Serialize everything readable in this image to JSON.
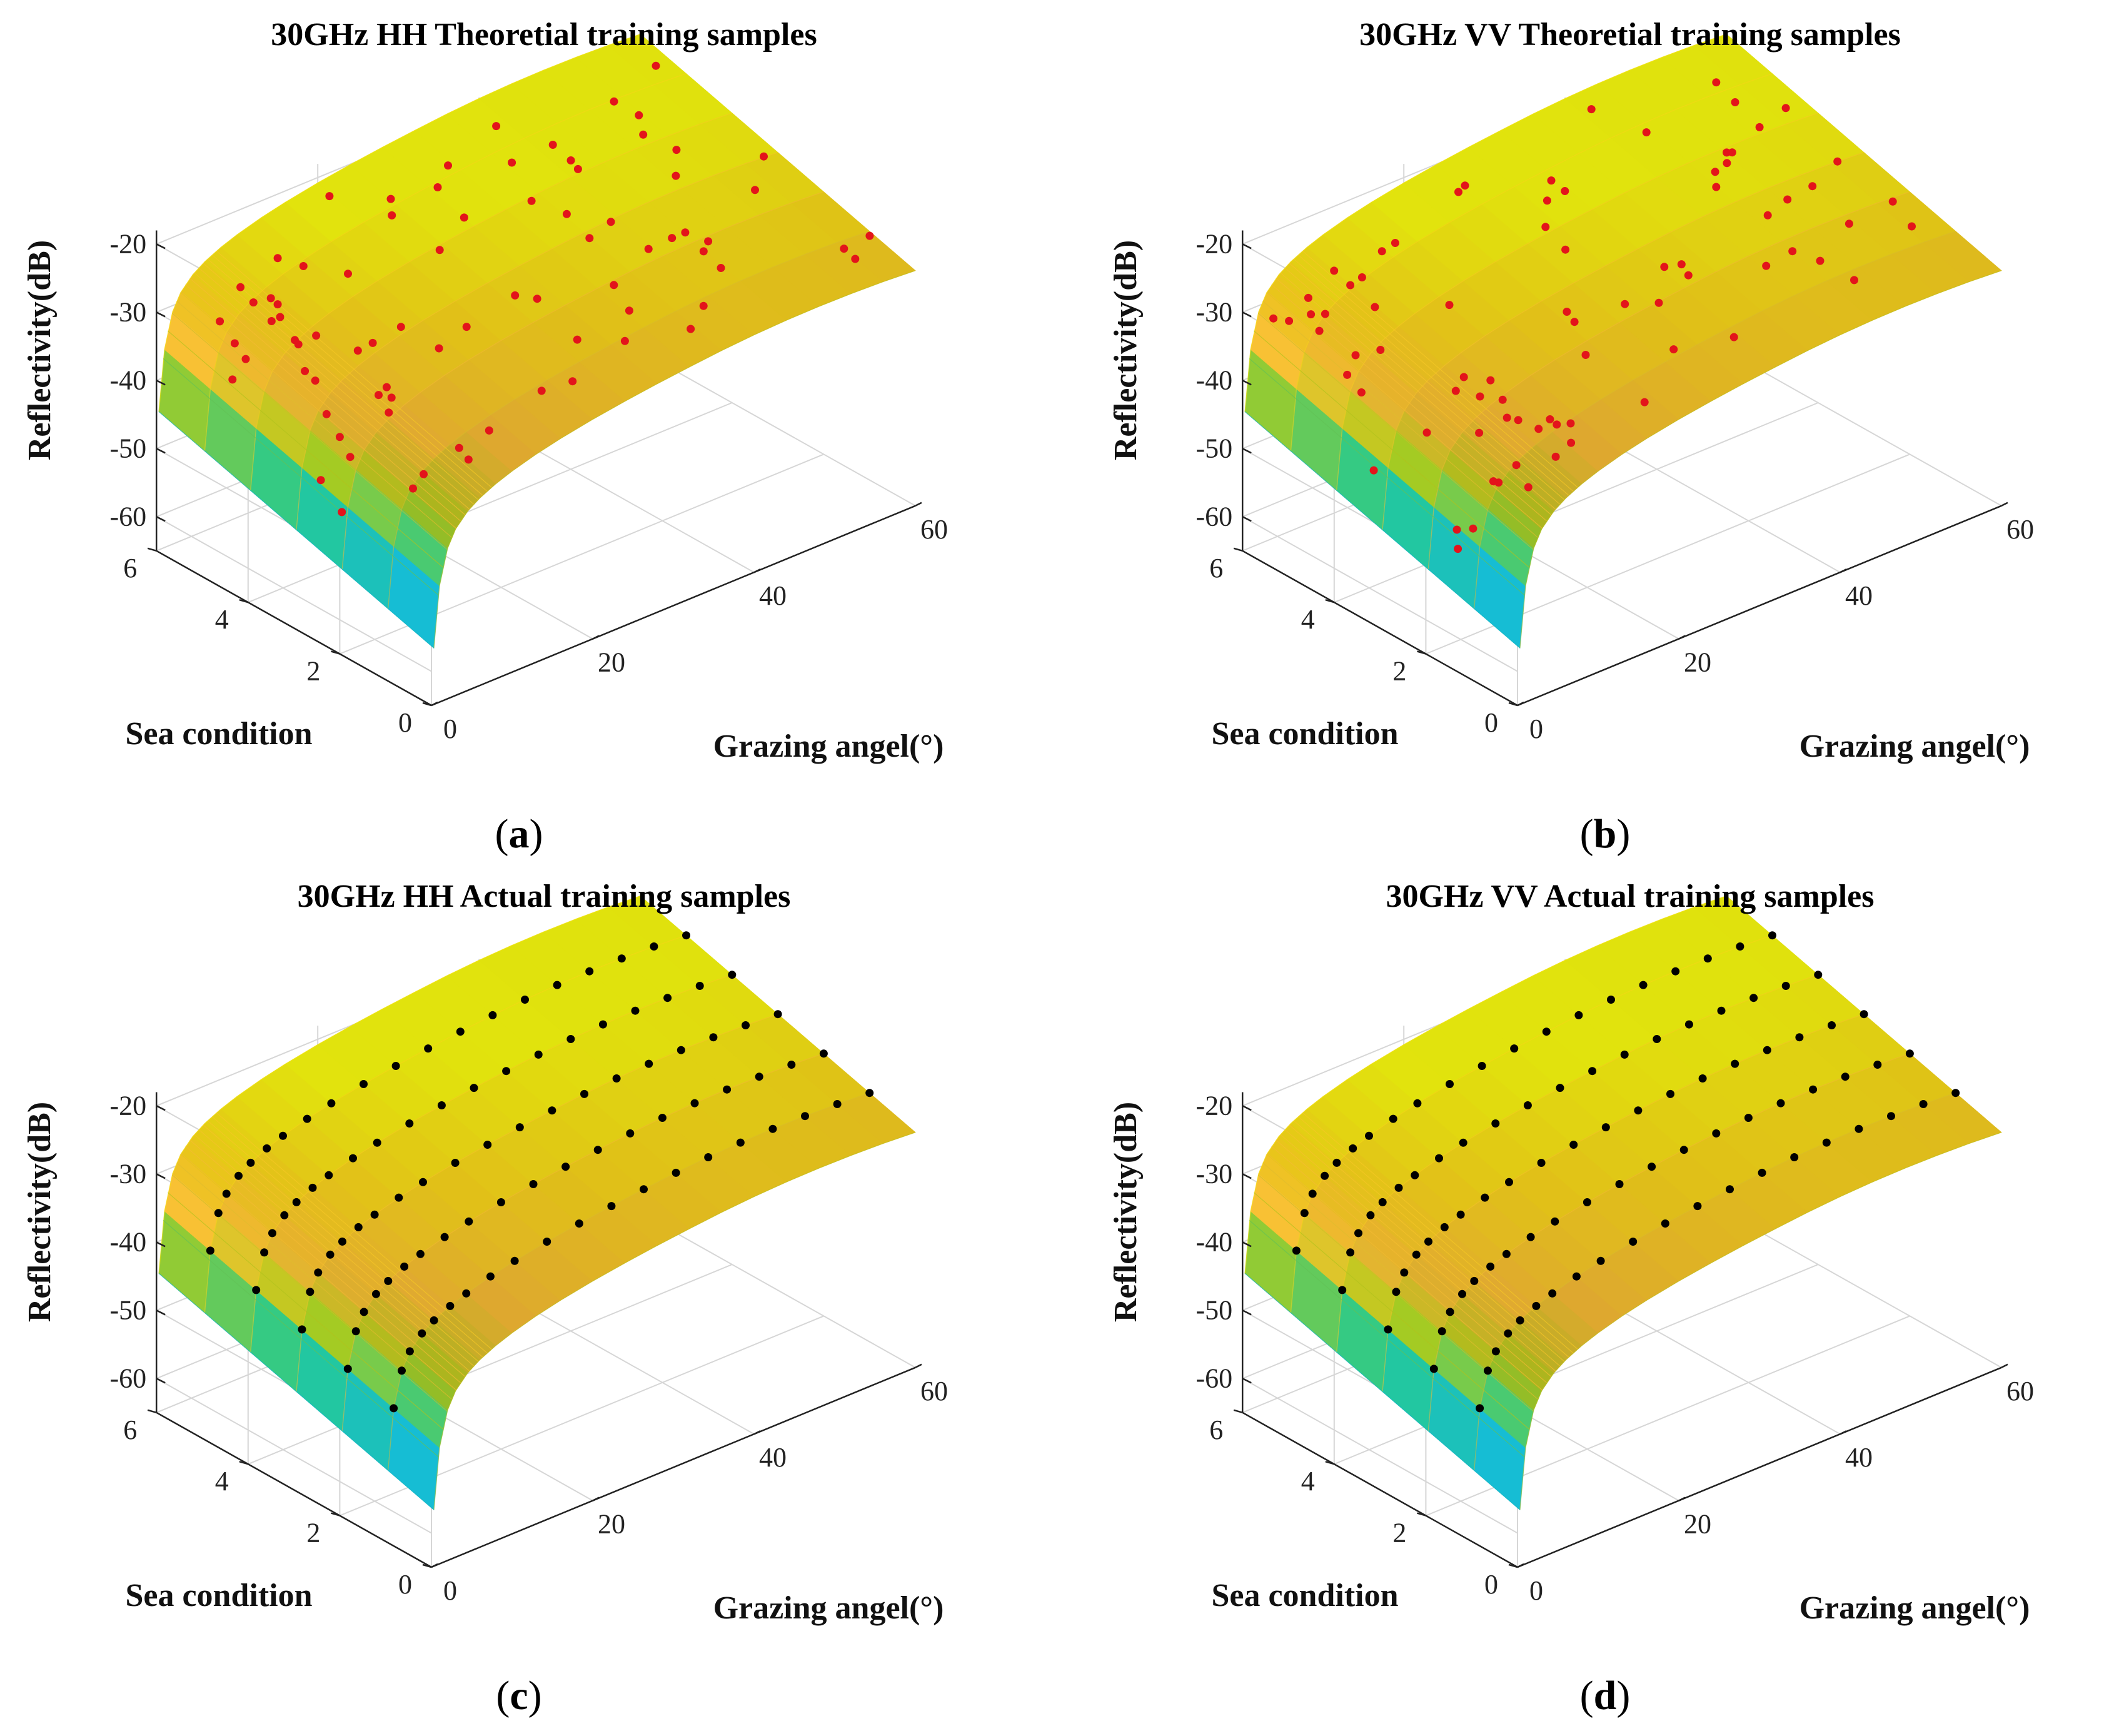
{
  "chart_data": [
    {
      "type": "surface3d",
      "panel": "a",
      "title": "30GHz HH Theoretial training samples",
      "xlabel": "Grazing angel(°)",
      "ylabel": "Sea condition",
      "zlabel": "Reflectivity(dB)",
      "xticks": [
        "0",
        "20",
        "40",
        "60"
      ],
      "yticks": [
        "0",
        "2",
        "4",
        "6"
      ],
      "zticks": [
        "-20",
        "-30",
        "-40",
        "-50",
        "-60"
      ],
      "xlim": [
        0,
        60
      ],
      "ylim": [
        0,
        6
      ],
      "zlim": [
        -65,
        -18
      ],
      "marker_color": "#e3141b",
      "sample_type": "scattered",
      "caption_label": "a"
    },
    {
      "type": "surface3d",
      "panel": "b",
      "title": "30GHz VV Theoretial training samples",
      "xlabel": "Grazing angel(°)",
      "ylabel": "Sea condition",
      "zlabel": "Reflectivity(dB)",
      "xticks": [
        "0",
        "20",
        "40",
        "60"
      ],
      "yticks": [
        "0",
        "2",
        "4",
        "6"
      ],
      "zticks": [
        "-20",
        "-30",
        "-40",
        "-50",
        "-60"
      ],
      "xlim": [
        0,
        60
      ],
      "ylim": [
        0,
        6
      ],
      "zlim": [
        -65,
        -18
      ],
      "marker_color": "#e3141b",
      "sample_type": "scattered",
      "caption_label": "b"
    },
    {
      "type": "surface3d",
      "panel": "c",
      "title": "30GHz HH Actual training samples",
      "xlabel": "Grazing angel(°)",
      "ylabel": "Sea condition",
      "zlabel": "Reflectivity(dB)",
      "xticks": [
        "0",
        "20",
        "40",
        "60"
      ],
      "yticks": [
        "0",
        "2",
        "4",
        "6"
      ],
      "zticks": [
        "-20",
        "-30",
        "-40",
        "-50",
        "-60"
      ],
      "xlim": [
        0,
        60
      ],
      "ylim": [
        0,
        6
      ],
      "zlim": [
        -65,
        -18
      ],
      "marker_color": "#000000",
      "sample_type": "gridlines",
      "caption_label": "c"
    },
    {
      "type": "surface3d",
      "panel": "d",
      "title": "30GHz VV Actual training samples",
      "xlabel": "Grazing angel(°)",
      "ylabel": "Sea condition",
      "zlabel": "Reflectivity(dB)",
      "xticks": [
        "0",
        "20",
        "40",
        "60"
      ],
      "yticks": [
        "0",
        "2",
        "4",
        "6"
      ],
      "zticks": [
        "-20",
        "-30",
        "-40",
        "-50",
        "-60"
      ],
      "xlim": [
        0,
        60
      ],
      "ylim": [
        0,
        6
      ],
      "zlim": [
        -65,
        -18
      ],
      "marker_color": "#000000",
      "sample_type": "gridlines",
      "caption_label": "d"
    }
  ],
  "colormap": [
    "#3e26a8",
    "#2c72fc",
    "#13b4d4",
    "#25c28a",
    "#a8c31a",
    "#f4b934",
    "#f8d51a",
    "#f9fb0e"
  ]
}
